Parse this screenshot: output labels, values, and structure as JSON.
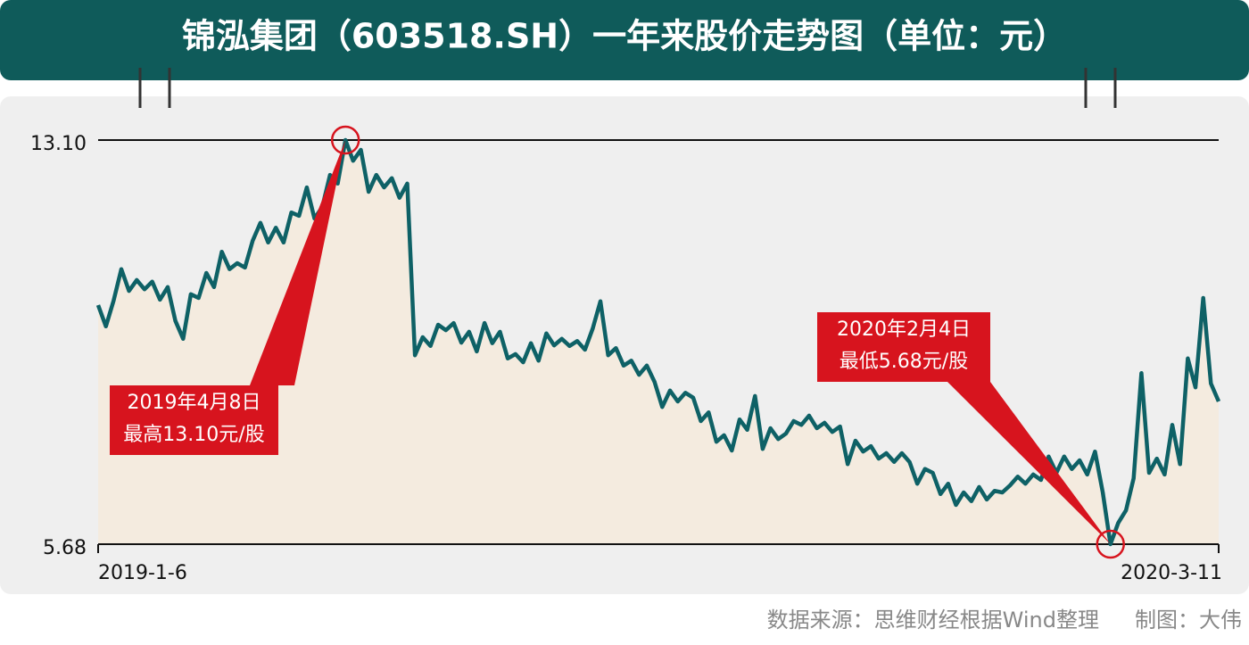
{
  "chart_data": {
    "type": "line",
    "title": "锦泓集团（603518.SH）一年来股价走势图（单位：元）",
    "categories": [
      "2019-1-6",
      null,
      null,
      null,
      null,
      null,
      null,
      null,
      null,
      null,
      null,
      null,
      null,
      null,
      null,
      null,
      null,
      null,
      null,
      null,
      null,
      null,
      null,
      null,
      null,
      null,
      null,
      null,
      null,
      null,
      null,
      null,
      null,
      null,
      null,
      null,
      null,
      null,
      null,
      null,
      null,
      null,
      null,
      null,
      null,
      null,
      null,
      null,
      null,
      null,
      null,
      null,
      null,
      null,
      null,
      null,
      null,
      null,
      null,
      null,
      null,
      null,
      null,
      null,
      null,
      null,
      null,
      null,
      null,
      null,
      null,
      null,
      null,
      null,
      null,
      null,
      null,
      null,
      null,
      null,
      null,
      null,
      null,
      null,
      null,
      null,
      null,
      null,
      null,
      null,
      null,
      null,
      null,
      null,
      null,
      null,
      null,
      null,
      null,
      null,
      null,
      null,
      null,
      null,
      null,
      null,
      null,
      null,
      null,
      null,
      null,
      null,
      null,
      null,
      null,
      null,
      null,
      null,
      null,
      null,
      null,
      null,
      null,
      null,
      null,
      null,
      null,
      null,
      null,
      null,
      null,
      null,
      null,
      null,
      null,
      null,
      null,
      null,
      null,
      null,
      null,
      null,
      null,
      null,
      null,
      "2020-3-11"
    ],
    "values": [
      10.07,
      9.68,
      10.15,
      10.73,
      10.33,
      10.53,
      10.36,
      10.5,
      10.17,
      10.4,
      9.78,
      9.45,
      10.27,
      10.2,
      10.66,
      10.4,
      11.05,
      10.73,
      10.84,
      10.76,
      11.25,
      11.58,
      11.22,
      11.49,
      11.22,
      11.77,
      11.71,
      12.23,
      11.66,
      11.87,
      12.46,
      12.3,
      13.1,
      12.72,
      12.92,
      12.15,
      12.46,
      12.23,
      12.4,
      12.04,
      12.3,
      9.15,
      9.48,
      9.32,
      9.71,
      9.61,
      9.74,
      9.38,
      9.58,
      9.22,
      9.74,
      9.37,
      9.58,
      9.09,
      9.17,
      9.02,
      9.37,
      9.05,
      9.55,
      9.33,
      9.45,
      9.32,
      9.41,
      9.25,
      9.64,
      10.14,
      9.15,
      9.28,
      8.96,
      9.05,
      8.79,
      8.96,
      8.66,
      8.2,
      8.5,
      8.3,
      8.46,
      8.37,
      7.94,
      8.1,
      7.56,
      7.68,
      7.4,
      7.97,
      7.78,
      8.4,
      7.43,
      7.81,
      7.61,
      7.71,
      7.94,
      7.87,
      8.04,
      7.81,
      7.91,
      7.74,
      7.84,
      7.15,
      7.58,
      7.38,
      7.48,
      7.25,
      7.35,
      7.19,
      7.35,
      7.19,
      6.79,
      7.06,
      6.99,
      6.6,
      6.79,
      6.4,
      6.63,
      6.47,
      6.73,
      6.5,
      6.66,
      6.63,
      6.76,
      6.92,
      6.79,
      6.96,
      6.86,
      7.29,
      6.99,
      7.29,
      7.06,
      7.22,
      6.96,
      7.38,
      6.63,
      5.68,
      6.07,
      6.3,
      6.89,
      8.82,
      6.99,
      7.25,
      6.96,
      7.87,
      7.15,
      9.09,
      8.56,
      10.2,
      8.63,
      8.3
    ],
    "color": "#0e6166",
    "fill": "#f4ebdf",
    "ylim": [
      5.68,
      13.1
    ],
    "yticks": [
      5.68,
      {
        "value": 13.1,
        "label": "13.10"
      }
    ],
    "annotations": [
      {
        "lines": [
          "2019年4月8日",
          "最高13.10元/股"
        ]
      },
      {
        "lines": [
          "2020年2月4日",
          "最低5.68元/股"
        ]
      }
    ],
    "source": "数据来源：思维财经根据Wind整理",
    "credit": "制图：大伟"
  }
}
